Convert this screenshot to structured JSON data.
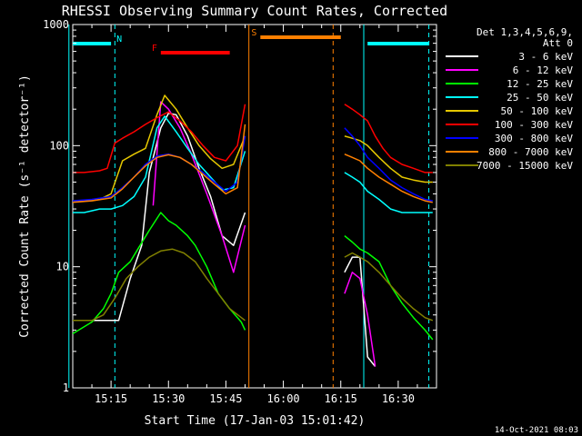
{
  "chart_data": {
    "type": "line",
    "title": "RHESSI Observing Summary Count Rates, Corrected",
    "xlabel": "Start Time (17-Jan-03 15:01:42)",
    "ylabel": "Corrected Count Rate (s⁻¹ detector⁻¹)",
    "y_scale": "log",
    "ylim": [
      1,
      1000
    ],
    "xlim": [
      "15:05",
      "16:40"
    ],
    "x_ticks": [
      "15:15",
      "15:30",
      "15:45",
      "16:00",
      "16:15",
      "16:30"
    ],
    "y_ticks": [
      "1",
      "10",
      "100",
      "1000"
    ],
    "legend_header": [
      "Det 1,3,4,5,6,9,",
      "Att 0"
    ],
    "legend_position": "right",
    "timestamp": "14-Oct-2021 08:03",
    "flags": [
      {
        "label": "N",
        "color": "#00ffff",
        "segments": [
          [
            "15:05",
            "15:15"
          ],
          [
            "16:22",
            "16:38"
          ]
        ]
      },
      {
        "label": "F",
        "color": "#ff0000",
        "segments": [
          [
            "15:28",
            "15:46"
          ]
        ]
      },
      {
        "label": "S",
        "color": "#ff8000",
        "segments": [
          [
            "15:54",
            "16:15"
          ]
        ]
      }
    ],
    "vlines": [
      {
        "time": "15:04",
        "color": "#00ffff",
        "style": "solid"
      },
      {
        "time": "15:16",
        "color": "#00ffff",
        "style": "dashed"
      },
      {
        "time": "15:51",
        "color": "#ff8000",
        "style": "solid"
      },
      {
        "time": "16:13",
        "color": "#ff8000",
        "style": "dashed"
      },
      {
        "time": "16:21",
        "color": "#00ffff",
        "style": "solid"
      },
      {
        "time": "16:38",
        "color": "#00ffff",
        "style": "dashed"
      }
    ],
    "series": [
      {
        "name": "3 - 6 keV",
        "color": "#ffffff",
        "segments": [
          {
            "t": [
              "15:05",
              "15:15",
              "15:17",
              "15:20",
              "15:23",
              "15:25",
              "15:28",
              "15:30",
              "15:32",
              "15:35",
              "15:38",
              "15:41",
              "15:44",
              "15:47",
              "15:50"
            ],
            "v": [
              3.6,
              3.6,
              3.6,
              8,
              15,
              60,
              140,
              185,
              180,
              120,
              65,
              38,
              18,
              15,
              28
            ]
          },
          {
            "t": [
              "16:16",
              "16:18",
              "16:20",
              "16:22",
              "16:24"
            ],
            "v": [
              9,
              12,
              12,
              1.8,
              1.5
            ]
          }
        ]
      },
      {
        "name": "6 - 12 keV",
        "color": "#ff00ff",
        "segments": [
          {
            "t": [
              "15:26",
              "15:28",
              "15:30",
              "15:33",
              "15:36",
              "15:40",
              "15:44",
              "15:47",
              "15:50"
            ],
            "v": [
              32,
              230,
              200,
              140,
              85,
              40,
              18,
              9,
              22
            ]
          },
          {
            "t": [
              "16:16",
              "16:18",
              "16:20",
              "16:22",
              "16:24"
            ],
            "v": [
              6,
              9,
              8,
              4,
              1.5
            ]
          }
        ]
      },
      {
        "name": "12 - 25 keV",
        "color": "#00ff00",
        "segments": [
          {
            "t": [
              "15:05",
              "15:10",
              "15:13",
              "15:15",
              "15:17",
              "15:20",
              "15:22",
              "15:25",
              "15:28",
              "15:30",
              "15:32",
              "15:35",
              "15:37",
              "15:40",
              "15:43",
              "15:46",
              "15:49",
              "15:50"
            ],
            "v": [
              2.8,
              3.5,
              4.5,
              6,
              9,
              11,
              14,
              20,
              28,
              24,
              22,
              18,
              15,
              10,
              6,
              4.5,
              3.5,
              3
            ]
          },
          {
            "t": [
              "16:16",
              "16:18",
              "16:20",
              "16:22",
              "16:25",
              "16:28",
              "16:31",
              "16:34",
              "16:37",
              "16:39"
            ],
            "v": [
              18,
              16,
              14,
              13,
              11,
              7,
              5,
              3.8,
              3,
              2.5
            ]
          }
        ]
      },
      {
        "name": "25 - 50 keV",
        "color": "#00ffff",
        "segments": [
          {
            "t": [
              "15:05",
              "15:08",
              "15:12",
              "15:15",
              "15:18",
              "15:21",
              "15:24",
              "15:27",
              "15:29",
              "15:32",
              "15:35",
              "15:38",
              "15:41",
              "15:44",
              "15:47",
              "15:50"
            ],
            "v": [
              28,
              28,
              30,
              30,
              32,
              38,
              55,
              140,
              175,
              130,
              95,
              70,
              55,
              43,
              45,
              90
            ]
          },
          {
            "t": [
              "16:16",
              "16:18",
              "16:20",
              "16:22",
              "16:25",
              "16:28",
              "16:31",
              "16:34",
              "16:37",
              "16:39"
            ],
            "v": [
              60,
              55,
              50,
              42,
              36,
              30,
              28,
              28,
              28,
              28
            ]
          }
        ]
      },
      {
        "name": "50 - 100 keV",
        "color": "#e6c800",
        "segments": [
          {
            "t": [
              "15:05",
              "15:08",
              "15:12",
              "15:15",
              "15:18",
              "15:21",
              "15:24",
              "15:27",
              "15:29",
              "15:32",
              "15:35",
              "15:38",
              "15:41",
              "15:44",
              "15:47",
              "15:50"
            ],
            "v": [
              35,
              35,
              36,
              40,
              75,
              85,
              95,
              180,
              260,
              200,
              140,
              100,
              78,
              65,
              70,
              120
            ]
          },
          {
            "t": [
              "16:16",
              "16:18",
              "16:20",
              "16:22",
              "16:25",
              "16:28",
              "16:31",
              "16:34",
              "16:37",
              "16:39"
            ],
            "v": [
              120,
              115,
              110,
              100,
              80,
              65,
              55,
              52,
              50,
              50
            ]
          }
        ]
      },
      {
        "name": "100 - 300 keV",
        "color": "#ff0000",
        "segments": [
          {
            "t": [
              "15:05",
              "15:08",
              "15:12",
              "15:14",
              "15:16",
              "15:18",
              "15:21",
              "15:24",
              "15:27",
              "15:30",
              "15:33",
              "15:36",
              "15:39",
              "15:42",
              "15:45",
              "15:48",
              "15:50"
            ],
            "v": [
              60,
              60,
              62,
              65,
              105,
              115,
              130,
              150,
              170,
              190,
              160,
              130,
              100,
              80,
              75,
              100,
              220
            ]
          },
          {
            "t": [
              "16:16",
              "16:18",
              "16:20",
              "16:22",
              "16:24",
              "16:26",
              "16:28",
              "16:31",
              "16:34",
              "16:37",
              "16:39"
            ],
            "v": [
              220,
              200,
              180,
              160,
              120,
              95,
              80,
              70,
              65,
              60,
              60
            ]
          }
        ]
      },
      {
        "name": "300 - 800 keV",
        "color": "#0000ff",
        "segments": [
          {
            "t": [
              "15:05",
              "15:10",
              "15:15",
              "15:18",
              "15:21",
              "15:24",
              "15:27",
              "15:30",
              "15:33",
              "15:36",
              "15:39",
              "15:42",
              "15:45",
              "15:48",
              "15:50"
            ],
            "v": [
              35,
              36,
              38,
              45,
              55,
              70,
              82,
              85,
              80,
              70,
              60,
              50,
              42,
              50,
              120
            ]
          },
          {
            "t": [
              "16:16",
              "16:18",
              "16:20",
              "16:22",
              "16:25",
              "16:28",
              "16:31",
              "16:34",
              "16:37",
              "16:39"
            ],
            "v": [
              140,
              120,
              100,
              80,
              65,
              52,
              45,
              40,
              36,
              35
            ]
          }
        ]
      },
      {
        "name": "800 - 7000 keV",
        "color": "#ff8000",
        "segments": [
          {
            "t": [
              "15:05",
              "15:10",
              "15:15",
              "15:18",
              "15:21",
              "15:24",
              "15:27",
              "15:30",
              "15:33",
              "15:36",
              "15:39",
              "15:42",
              "15:45",
              "15:48",
              "15:50"
            ],
            "v": [
              34,
              35,
              37,
              44,
              55,
              68,
              80,
              84,
              80,
              70,
              58,
              48,
              40,
              45,
              150
            ]
          },
          {
            "t": [
              "16:16",
              "16:18",
              "16:20",
              "16:22",
              "16:25",
              "16:28",
              "16:31",
              "16:34",
              "16:37",
              "16:39"
            ],
            "v": [
              85,
              80,
              75,
              65,
              55,
              48,
              42,
              38,
              35,
              34
            ]
          }
        ]
      },
      {
        "name": "7000 - 15000 keV",
        "color": "#808000",
        "segments": [
          {
            "t": [
              "15:05",
              "15:10",
              "15:13",
              "15:16",
              "15:19",
              "15:22",
              "15:25",
              "15:28",
              "15:31",
              "15:34",
              "15:37",
              "15:40",
              "15:43",
              "15:46",
              "15:50"
            ],
            "v": [
              3.6,
              3.6,
              4,
              5.5,
              8,
              10,
              12,
              13.5,
              14,
              13,
              11,
              8,
              6,
              4.5,
              3.6
            ]
          },
          {
            "t": [
              "16:16",
              "16:18",
              "16:20",
              "16:22",
              "16:25",
              "16:28",
              "16:31",
              "16:34",
              "16:37",
              "16:39"
            ],
            "v": [
              12,
              13,
              12,
              11,
              9,
              7,
              5.5,
              4.5,
              3.8,
              3.6
            ]
          }
        ]
      }
    ]
  }
}
